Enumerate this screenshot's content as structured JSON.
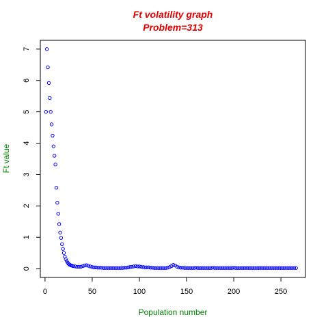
{
  "chart_data": {
    "type": "scatter",
    "title": "Ft volatility graph",
    "subtitle": "Problem=313",
    "xlabel": "Population number",
    "ylabel": "Ft value",
    "xlim": [
      -5,
      276
    ],
    "ylim": [
      -0.28,
      7.28
    ],
    "xticks": [
      0,
      50,
      100,
      150,
      200,
      250
    ],
    "yticks": [
      0,
      1,
      2,
      3,
      4,
      5,
      6,
      7
    ],
    "point_color": "#0000ff",
    "title_color": "#e00000",
    "label_color": "#008000",
    "grid": false,
    "legend": "none",
    "x": [
      1,
      2,
      3,
      4,
      5,
      6,
      7,
      8,
      9,
      10,
      11,
      12,
      13,
      14,
      15,
      16,
      17,
      18,
      19,
      20,
      21,
      22,
      23,
      24,
      25,
      26,
      27,
      28,
      29,
      30,
      32,
      34,
      36,
      38,
      40,
      42,
      44,
      46,
      48,
      50,
      52,
      54,
      56,
      58,
      60,
      62,
      64,
      66,
      68,
      70,
      72,
      74,
      76,
      78,
      80,
      82,
      84,
      86,
      88,
      90,
      92,
      94,
      96,
      98,
      100,
      102,
      104,
      106,
      108,
      110,
      112,
      114,
      116,
      118,
      120,
      122,
      124,
      126,
      128,
      130,
      132,
      134,
      136,
      138,
      140,
      142,
      144,
      146,
      148,
      150,
      152,
      154,
      156,
      158,
      160,
      162,
      164,
      166,
      168,
      170,
      172,
      174,
      176,
      178,
      180,
      182,
      184,
      186,
      188,
      190,
      192,
      194,
      196,
      198,
      200,
      202,
      204,
      206,
      208,
      210,
      212,
      214,
      216,
      218,
      220,
      222,
      224,
      226,
      228,
      230,
      232,
      234,
      236,
      238,
      240,
      242,
      244,
      246,
      248,
      250,
      252,
      254,
      256,
      258,
      260,
      262,
      264,
      266
    ],
    "y": [
      5.0,
      7.0,
      6.42,
      5.92,
      5.44,
      5.0,
      4.6,
      4.24,
      3.9,
      3.6,
      3.32,
      2.58,
      2.1,
      1.75,
      1.42,
      1.15,
      0.98,
      0.78,
      0.63,
      0.5,
      0.38,
      0.3,
      0.24,
      0.19,
      0.15,
      0.13,
      0.11,
      0.1,
      0.09,
      0.08,
      0.07,
      0.06,
      0.06,
      0.06,
      0.08,
      0.1,
      0.11,
      0.09,
      0.07,
      0.05,
      0.04,
      0.04,
      0.03,
      0.03,
      0.03,
      0.02,
      0.02,
      0.02,
      0.02,
      0.02,
      0.02,
      0.02,
      0.02,
      0.02,
      0.02,
      0.02,
      0.03,
      0.03,
      0.04,
      0.05,
      0.06,
      0.07,
      0.08,
      0.07,
      0.07,
      0.06,
      0.05,
      0.04,
      0.04,
      0.04,
      0.03,
      0.03,
      0.02,
      0.02,
      0.02,
      0.02,
      0.02,
      0.02,
      0.02,
      0.03,
      0.05,
      0.08,
      0.12,
      0.1,
      0.06,
      0.04,
      0.03,
      0.03,
      0.02,
      0.02,
      0.02,
      0.02,
      0.02,
      0.02,
      0.03,
      0.02,
      0.02,
      0.02,
      0.02,
      0.02,
      0.02,
      0.02,
      0.02,
      0.03,
      0.02,
      0.02,
      0.02,
      0.02,
      0.02,
      0.02,
      0.02,
      0.02,
      0.02,
      0.02,
      0.03,
      0.02,
      0.02,
      0.02,
      0.02,
      0.02,
      0.02,
      0.02,
      0.02,
      0.02,
      0.02,
      0.02,
      0.02,
      0.02,
      0.02,
      0.02,
      0.02,
      0.02,
      0.02,
      0.02,
      0.02,
      0.02,
      0.02,
      0.02,
      0.02,
      0.02,
      0.02,
      0.02,
      0.02,
      0.02,
      0.02,
      0.02,
      0.02,
      0.02
    ]
  }
}
